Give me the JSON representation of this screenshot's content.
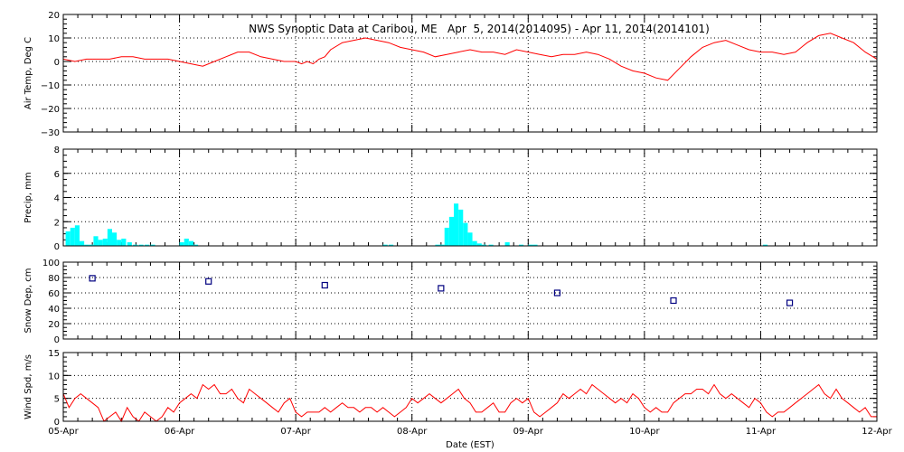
{
  "title": "NWS Synoptic Data at Caribou, ME   Apr  5, 2014(2014095) - Apr 11, 2014(2014101)",
  "x_axis": {
    "label": "Date (EST)",
    "ticks": [
      "05-Apr",
      "06-Apr",
      "07-Apr",
      "08-Apr",
      "09-Apr",
      "10-Apr",
      "11-Apr",
      "12-Apr"
    ]
  },
  "colors": {
    "temp": "#ff0000",
    "precip": "#00ffff",
    "snow": "#000080",
    "wind": "#ff0000"
  },
  "chart_data": [
    {
      "type": "line",
      "ylabel": "Air Temp, Deg C",
      "ylim": [
        -30,
        20
      ],
      "yticks": [
        "20",
        "10",
        "0",
        "−10",
        "−20",
        "−30"
      ],
      "x_days_range": [
        0,
        7
      ],
      "series": [
        {
          "x": [
            0,
            0.1,
            0.2,
            0.3,
            0.4,
            0.5,
            0.6,
            0.7,
            0.8,
            0.9,
            1.0,
            1.1,
            1.2,
            1.3,
            1.4,
            1.5,
            1.6,
            1.7,
            1.8,
            1.9,
            2.0,
            2.05,
            2.1,
            2.15,
            2.2,
            2.25,
            2.3,
            2.4,
            2.5,
            2.6,
            2.7,
            2.8,
            2.9,
            3.0,
            3.1,
            3.2,
            3.3,
            3.4,
            3.5,
            3.6,
            3.7,
            3.8,
            3.9,
            4.0,
            4.1,
            4.2,
            4.3,
            4.4,
            4.5,
            4.6,
            4.7,
            4.8,
            4.9,
            5.0,
            5.1,
            5.2,
            5.3,
            5.4,
            5.5,
            5.6,
            5.7,
            5.8,
            5.9,
            6.0,
            6.1,
            6.2,
            6.3,
            6.4,
            6.5,
            6.6,
            6.7,
            6.8,
            6.9,
            7.0
          ],
          "y": [
            1,
            0,
            1,
            1,
            1,
            2,
            2,
            1,
            1,
            1,
            0,
            -1,
            -2,
            0,
            2,
            4,
            4,
            2,
            1,
            0,
            0,
            -1,
            0,
            -1,
            1,
            2,
            5,
            8,
            9,
            10,
            9,
            8,
            6,
            5,
            4,
            2,
            3,
            4,
            5,
            4,
            4,
            3,
            5,
            4,
            3,
            2,
            3,
            3,
            4,
            3,
            1,
            -2,
            -4,
            -5,
            -7,
            -8,
            -3,
            2,
            6,
            8,
            9,
            7,
            5,
            4,
            4,
            3,
            4,
            8,
            11,
            12,
            10,
            8,
            4,
            1
          ]
        }
      ]
    },
    {
      "type": "bar",
      "ylabel": "Precip, mm",
      "ylim": [
        0,
        8
      ],
      "yticks": [
        "8",
        "6",
        "4",
        "2",
        "0"
      ],
      "bar_width_days": 0.04,
      "x_days": [
        0.02,
        0.06,
        0.1,
        0.14,
        0.18,
        0.22,
        0.26,
        0.3,
        0.34,
        0.38,
        0.42,
        0.46,
        0.5,
        0.55,
        0.6,
        0.65,
        0.7,
        0.75,
        1.0,
        1.04,
        1.08,
        1.12,
        2.75,
        2.8,
        3.2,
        3.24,
        3.28,
        3.32,
        3.36,
        3.4,
        3.44,
        3.48,
        3.52,
        3.56,
        3.6,
        3.66,
        3.8,
        3.92,
        4.0,
        4.04,
        6.02
      ],
      "values": [
        1.2,
        1.5,
        1.7,
        0.4,
        0.1,
        0.1,
        0.8,
        0.5,
        0.6,
        1.4,
        1.1,
        0.5,
        0.6,
        0.3,
        0.1,
        0.1,
        0.1,
        0.1,
        0.3,
        0.6,
        0.4,
        0.1,
        0.1,
        0.1,
        0.1,
        0.1,
        1.5,
        2.4,
        3.5,
        3.0,
        1.9,
        1.1,
        0.4,
        0.2,
        0.1,
        0.1,
        0.3,
        0.1,
        0.1,
        0.1,
        0.1
      ]
    },
    {
      "type": "scatter",
      "ylabel": "Snow Dep, cm",
      "ylim": [
        0,
        100
      ],
      "yticks": [
        "100",
        "80",
        "60",
        "40",
        "20",
        "0"
      ],
      "x_days": [
        0.25,
        1.25,
        2.25,
        3.25,
        4.25,
        5.25,
        6.25
      ],
      "values": [
        79,
        75,
        70,
        66,
        60,
        50,
        47
      ]
    },
    {
      "type": "line",
      "ylabel": "Wind Spd, m/s",
      "ylim": [
        0,
        15
      ],
      "yticks": [
        "15",
        "10",
        "5",
        "0"
      ],
      "x_days_range": [
        0,
        7
      ],
      "series": [
        {
          "x": [
            0,
            0.05,
            0.1,
            0.15,
            0.2,
            0.25,
            0.3,
            0.35,
            0.4,
            0.45,
            0.5,
            0.55,
            0.6,
            0.65,
            0.7,
            0.75,
            0.8,
            0.85,
            0.9,
            0.95,
            1.0,
            1.05,
            1.1,
            1.15,
            1.2,
            1.25,
            1.3,
            1.35,
            1.4,
            1.45,
            1.5,
            1.55,
            1.6,
            1.65,
            1.7,
            1.75,
            1.8,
            1.85,
            1.9,
            1.95,
            2.0,
            2.05,
            2.1,
            2.15,
            2.2,
            2.25,
            2.3,
            2.35,
            2.4,
            2.45,
            2.5,
            2.55,
            2.6,
            2.65,
            2.7,
            2.75,
            2.8,
            2.85,
            2.9,
            2.95,
            3.0,
            3.05,
            3.1,
            3.15,
            3.2,
            3.25,
            3.3,
            3.35,
            3.4,
            3.45,
            3.5,
            3.55,
            3.6,
            3.65,
            3.7,
            3.75,
            3.8,
            3.85,
            3.9,
            3.95,
            4.0,
            4.05,
            4.1,
            4.15,
            4.2,
            4.25,
            4.3,
            4.35,
            4.4,
            4.45,
            4.5,
            4.55,
            4.6,
            4.65,
            4.7,
            4.75,
            4.8,
            4.85,
            4.9,
            4.95,
            5.0,
            5.05,
            5.1,
            5.15,
            5.2,
            5.25,
            5.3,
            5.35,
            5.4,
            5.45,
            5.5,
            5.55,
            5.6,
            5.65,
            5.7,
            5.75,
            5.8,
            5.85,
            5.9,
            5.95,
            6.0,
            6.05,
            6.1,
            6.15,
            6.2,
            6.25,
            6.3,
            6.35,
            6.4,
            6.45,
            6.5,
            6.55,
            6.6,
            6.65,
            6.7,
            6.75,
            6.8,
            6.85,
            6.9,
            6.95,
            7.0
          ],
          "y": [
            6,
            3,
            5,
            6,
            5,
            4,
            3,
            0,
            1,
            2,
            0,
            3,
            1,
            0,
            2,
            1,
            0,
            1,
            3,
            2,
            4,
            5,
            6,
            5,
            8,
            7,
            8,
            6,
            6,
            7,
            5,
            4,
            7,
            6,
            5,
            4,
            3,
            2,
            4,
            5,
            2,
            1,
            2,
            2,
            2,
            3,
            2,
            3,
            4,
            3,
            3,
            2,
            3,
            3,
            2,
            3,
            2,
            1,
            2,
            3,
            5,
            4,
            5,
            6,
            5,
            4,
            5,
            6,
            7,
            5,
            4,
            2,
            2,
            3,
            4,
            2,
            2,
            4,
            5,
            4,
            5,
            2,
            1,
            2,
            3,
            4,
            6,
            5,
            6,
            7,
            6,
            8,
            7,
            6,
            5,
            4,
            5,
            4,
            6,
            5,
            3,
            2,
            3,
            2,
            2,
            4,
            5,
            6,
            6,
            7,
            7,
            6,
            8,
            6,
            5,
            6,
            5,
            4,
            3,
            5,
            4,
            2,
            1,
            2,
            2,
            3,
            4,
            5,
            6,
            7,
            8,
            6,
            5,
            7,
            5,
            4,
            3,
            2,
            3,
            1,
            1
          ]
        }
      ]
    }
  ]
}
